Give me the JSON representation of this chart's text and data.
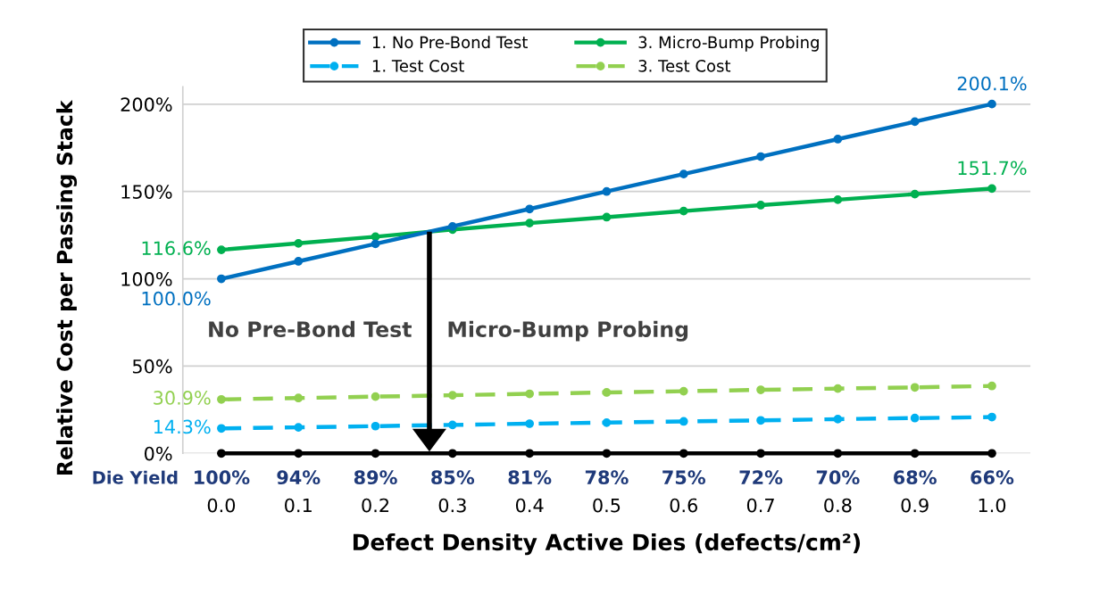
{
  "chart_data": {
    "type": "line",
    "x": [
      0.0,
      0.1,
      0.2,
      0.3,
      0.4,
      0.5,
      0.6,
      0.7,
      0.8,
      0.9,
      1.0
    ],
    "xlabel": "Defect Density Active Dies (defects/cm²)",
    "ylabel": "Relative Cost per Passing Stack",
    "xlim": [
      -0.05,
      1.05
    ],
    "xticks": [
      {
        "value": 0.0,
        "label": "0.0"
      },
      {
        "value": 0.1,
        "label": "0.1"
      },
      {
        "value": 0.2,
        "label": "0.2"
      },
      {
        "value": 0.3,
        "label": "0.3"
      },
      {
        "value": 0.4,
        "label": "0.4"
      },
      {
        "value": 0.5,
        "label": "0.5"
      },
      {
        "value": 0.6,
        "label": "0.6"
      },
      {
        "value": 0.7,
        "label": "0.7"
      },
      {
        "value": 0.8,
        "label": "0.8"
      },
      {
        "value": 0.9,
        "label": "0.9"
      },
      {
        "value": 1.0,
        "label": "1.0"
      }
    ],
    "ylim": [
      0,
      210
    ],
    "yticks": [
      {
        "value": 0,
        "label": "0%"
      },
      {
        "value": 50,
        "label": "50%"
      },
      {
        "value": 100,
        "label": "100%"
      },
      {
        "value": 150,
        "label": "150%"
      },
      {
        "value": 200,
        "label": "200%"
      }
    ],
    "grid": "y",
    "legend": "top",
    "marker": "circle",
    "series": [
      {
        "name": "1. No Pre-Bond Test",
        "color": "#0070c0",
        "line_style": "solid",
        "values": [
          100.0,
          110,
          120,
          130,
          140,
          150,
          160,
          170,
          180,
          190,
          200.1
        ],
        "value_labels": [
          "100.0%",
          null,
          null,
          null,
          null,
          null,
          null,
          null,
          null,
          null,
          "200.1%"
        ]
      },
      {
        "name": "3. Micro-Bump Probing",
        "color": "#00b050",
        "line_style": "solid",
        "values": [
          116.6,
          120.3,
          124.1,
          128.2,
          131.9,
          135.3,
          138.8,
          142.2,
          145.3,
          148.5,
          151.7
        ],
        "value_labels": [
          "116.6%",
          null,
          null,
          null,
          null,
          null,
          null,
          null,
          null,
          null,
          "151.7%"
        ]
      },
      {
        "name": "1. Test Cost",
        "color": "#00b0f0",
        "line_style": "dashed",
        "values": [
          14.3,
          14.9,
          15.6,
          16.3,
          17.0,
          17.6,
          18.3,
          18.9,
          19.6,
          20.2,
          20.8
        ],
        "value_labels": [
          "14.3%",
          null,
          null,
          null,
          null,
          null,
          null,
          null,
          null,
          null,
          null
        ]
      },
      {
        "name": "3. Test Cost",
        "color": "#92d050",
        "line_style": "dashed",
        "values": [
          30.9,
          31.7,
          32.5,
          33.3,
          34.1,
          34.9,
          35.6,
          36.4,
          37.1,
          37.8,
          38.6
        ],
        "value_labels": [
          "30.9%",
          null,
          null,
          null,
          null,
          null,
          null,
          null,
          null,
          null,
          null
        ]
      },
      {
        "color": "#000000",
        "line_style": "solid",
        "values": [
          0,
          0,
          0,
          0,
          0,
          0,
          0,
          0,
          0,
          0,
          0
        ]
      }
    ],
    "ref_lines": [
      {
        "axis": "x",
        "value": 0.27,
        "color": "#000000"
      }
    ],
    "annotations": [
      "No Pre-Bond Test",
      "Micro-Bump Probing",
      "Die Yield",
      "100%",
      "94%",
      "89%",
      "85%",
      "81%",
      "78%",
      "75%",
      "72%",
      "70%",
      "68%",
      "66%"
    ]
  }
}
